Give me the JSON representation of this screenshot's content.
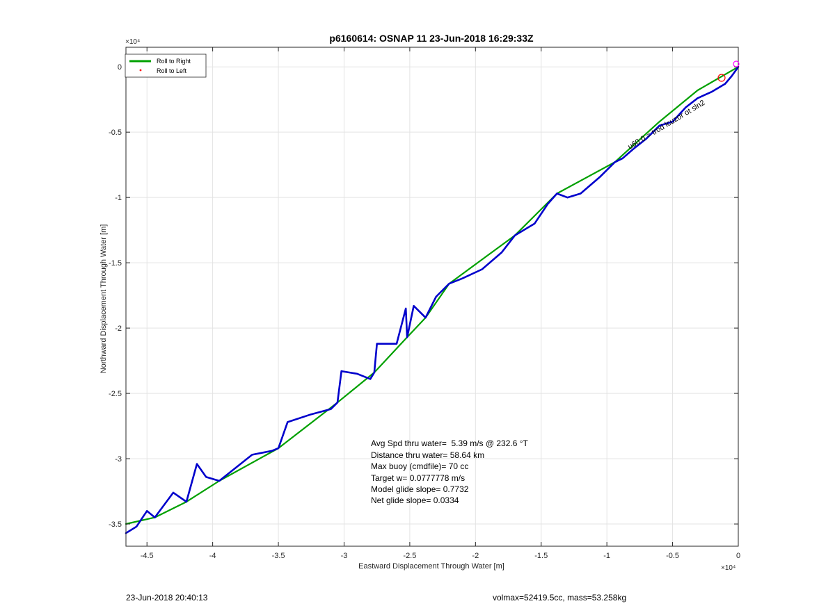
{
  "chart_data": {
    "type": "line",
    "title": "p6160614: OSNAP 11 23-Jun-2018 16:29:33Z",
    "xlabel": "Eastward Displacement Through Water [m]",
    "ylabel": "Northward Displacement Through Water [m]",
    "x_exponent": "×10⁴",
    "y_exponent": "×10⁴",
    "xlim": [
      -4.66,
      0
    ],
    "ylim": [
      -3.67,
      0.15
    ],
    "x_ticks": [
      -4.5,
      -4,
      -3.5,
      -3,
      -2.5,
      -2,
      -1.5,
      -1,
      -0.5,
      0
    ],
    "x_tick_labels": [
      "-4.5",
      "-4",
      "-3.5",
      "-3",
      "-2.5",
      "-2",
      "-1.5",
      "-1",
      "-0.5",
      "0"
    ],
    "y_ticks": [
      0,
      -0.5,
      -1,
      -1.5,
      -2,
      -2.5,
      -3,
      -3.5
    ],
    "y_tick_labels": [
      "0",
      "-0.5",
      "-1",
      "-1.5",
      "-2",
      "-2.5",
      "-3",
      "-3.5"
    ],
    "grid": true,
    "legend_position": "top-left",
    "series": [
      {
        "name": "Roll to Right",
        "color": "#00a000",
        "x": [
          0,
          -0.31,
          -0.6,
          -0.94,
          -1.38,
          -1.7,
          -2.2,
          -2.38,
          -2.52,
          -2.77,
          -3.05,
          -3.5,
          -3.95,
          -4.2,
          -4.44,
          -4.66
        ],
        "y": [
          0,
          -0.18,
          -0.42,
          -0.73,
          -0.97,
          -1.29,
          -1.66,
          -1.92,
          -2.07,
          -2.34,
          -2.57,
          -2.92,
          -3.17,
          -3.33,
          -3.45,
          -3.5
        ]
      },
      {
        "name": "Roll to Left",
        "color": "#ff0000",
        "x": [],
        "y": []
      },
      {
        "name": "",
        "color": "#0000cc",
        "x": [
          0,
          -0.05,
          -0.1,
          -0.2,
          -0.31,
          -0.4,
          -0.5,
          -0.6,
          -0.7,
          -0.8,
          -0.88,
          -0.94,
          -1.05,
          -1.2,
          -1.3,
          -1.38,
          -1.45,
          -1.55,
          -1.7,
          -1.8,
          -1.95,
          -2.1,
          -2.2,
          -2.3,
          -2.38,
          -2.47,
          -2.52,
          -2.53,
          -2.6,
          -2.75,
          -2.77,
          -2.8,
          -2.9,
          -3.02,
          -3.05,
          -3.1,
          -3.25,
          -3.43,
          -3.5,
          -3.55,
          -3.7,
          -3.95,
          -4.05,
          -4.12,
          -4.2,
          -4.3,
          -4.44,
          -4.5,
          -4.58,
          -4.66
        ],
        "y": [
          0,
          -0.07,
          -0.13,
          -0.19,
          -0.24,
          -0.31,
          -0.42,
          -0.45,
          -0.55,
          -0.63,
          -0.7,
          -0.73,
          -0.84,
          -0.97,
          -1.0,
          -0.97,
          -1.05,
          -1.2,
          -1.29,
          -1.42,
          -1.55,
          -1.62,
          -1.66,
          -1.76,
          -1.92,
          -1.83,
          -2.07,
          -1.85,
          -2.12,
          -2.12,
          -2.34,
          -2.39,
          -2.35,
          -2.33,
          -2.57,
          -2.62,
          -2.66,
          -2.72,
          -2.92,
          -2.94,
          -2.97,
          -3.17,
          -3.14,
          -3.04,
          -3.33,
          -3.26,
          -3.45,
          -3.4,
          -3.52,
          -3.57
        ]
      }
    ],
    "annotation_lines": [
      "Avg Spd thru water=  5.39 m/s @ 232.6 °T",
      "Distance thru water= 58.64 km",
      "Max buoy (cmdfile)= 70 cc",
      "Target w= 0.0777778 m/s",
      "Model glide slope= 0.7732",
      "Net glide slope= 0.0334"
    ],
    "diagonal_label": "u60.0 = trod lcuzor ot sln2",
    "footer_left": "23-Jun-2018 20:40:13",
    "footer_right": "volmax=52419.5cc, mass=53.258kg"
  }
}
